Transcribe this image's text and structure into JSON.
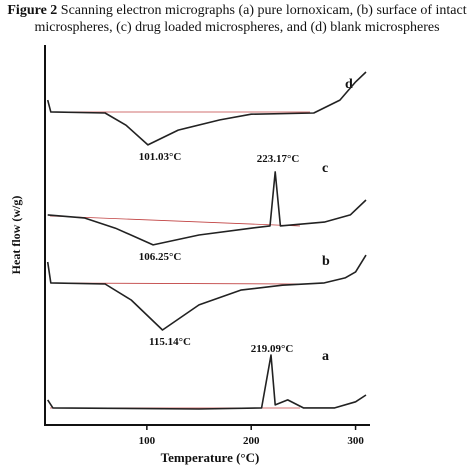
{
  "caption_label": "Figure 2",
  "caption_text": "Scanning electron micrographs (a) pure lornoxicam, (b) surface of intact microspheres, (c) drug loaded microspheres, and (d) blank microspheres",
  "chart_data": {
    "type": "line",
    "xlabel": "Temperature (°C)",
    "ylabel": "Heat flow (w/g)",
    "xlim": [
      0,
      310
    ],
    "xticks": [
      100,
      200,
      300
    ],
    "ylim": [
      0,
      100
    ],
    "series": [
      {
        "name": "d",
        "color": "#222222",
        "x": [
          5,
          8,
          60,
          80,
          101,
          130,
          170,
          200,
          260,
          285,
          300,
          310
        ],
        "values": [
          85.5,
          82.4,
          82.1,
          78.9,
          73.7,
          77.6,
          80.3,
          81.8,
          82.1,
          85.5,
          90.3,
          92.9
        ]
      },
      {
        "name": "c",
        "color": "#222222",
        "x": [
          5,
          40,
          70,
          106,
          150,
          200,
          218,
          223,
          228,
          270,
          295,
          310
        ],
        "values": [
          55.3,
          54.5,
          51.8,
          47.4,
          50,
          51.8,
          52.4,
          66.6,
          52.4,
          53.4,
          55.3,
          59.2
        ]
      },
      {
        "name": "b",
        "color": "#222222",
        "x": [
          5,
          8,
          60,
          85,
          115,
          150,
          190,
          230,
          270,
          290,
          300,
          310
        ],
        "values": [
          42.9,
          37.4,
          37.1,
          32.9,
          25,
          31.6,
          35.5,
          36.8,
          37.4,
          38.7,
          40.3,
          44.7
        ]
      },
      {
        "name": "a",
        "color": "#222222",
        "x": [
          5,
          10,
          150,
          210,
          219,
          223,
          235,
          250,
          280,
          300,
          310
        ],
        "values": [
          6.6,
          4.5,
          4.2,
          4.5,
          18.4,
          5.3,
          6.6,
          4.5,
          4.5,
          6.1,
          7.9
        ]
      }
    ],
    "annotations": [
      "101.03°C",
      "223.17°C",
      "106.25°C",
      "115.14°C",
      "219.09°C"
    ]
  }
}
